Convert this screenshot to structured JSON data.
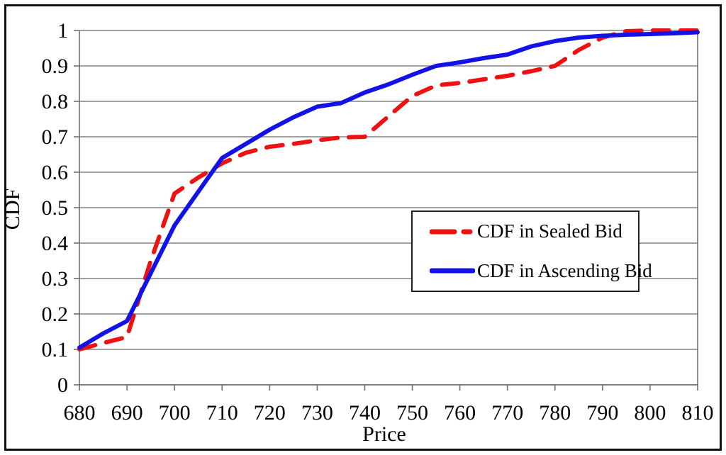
{
  "chart": {
    "xlabel": "Price",
    "ylabel": "CDF"
  },
  "chart_data": {
    "type": "line",
    "title": "",
    "xlabel": "Price",
    "ylabel": "CDF",
    "xlim": [
      680,
      810
    ],
    "ylim": [
      0,
      1
    ],
    "x_ticks": [
      680,
      690,
      700,
      710,
      720,
      730,
      740,
      750,
      760,
      770,
      780,
      790,
      800,
      810
    ],
    "y_ticks": [
      0,
      0.1,
      0.2,
      0.3,
      0.4,
      0.5,
      0.6,
      0.7,
      0.8,
      0.9,
      1
    ],
    "grid": "horizontal",
    "legend_position": "inside-middle-right",
    "colors": {
      "grid": "#808080",
      "axis": "#707070",
      "text": "#000000"
    },
    "x": [
      680,
      685,
      690,
      695,
      700,
      705,
      710,
      715,
      720,
      725,
      730,
      735,
      740,
      745,
      750,
      755,
      760,
      765,
      770,
      775,
      780,
      785,
      790,
      795,
      800,
      805,
      810
    ],
    "series": [
      {
        "name": "CDF in Sealed Bid",
        "color": "#ee1111",
        "style": "dashed",
        "values": [
          0.1,
          0.118,
          0.135,
          0.35,
          0.54,
          0.585,
          0.625,
          0.655,
          0.672,
          0.68,
          0.69,
          0.698,
          0.7,
          0.758,
          0.815,
          0.845,
          0.852,
          0.862,
          0.872,
          0.885,
          0.9,
          0.945,
          0.98,
          0.998,
          1,
          1,
          1
        ]
      },
      {
        "name": "CDF in Ascending Bid",
        "color": "#1212e6",
        "style": "solid",
        "values": [
          0.105,
          0.145,
          0.18,
          0.315,
          0.45,
          0.545,
          0.64,
          0.68,
          0.72,
          0.755,
          0.785,
          0.795,
          0.825,
          0.848,
          0.875,
          0.9,
          0.91,
          0.922,
          0.932,
          0.955,
          0.97,
          0.98,
          0.985,
          0.988,
          0.99,
          0.992,
          0.995
        ]
      }
    ]
  }
}
